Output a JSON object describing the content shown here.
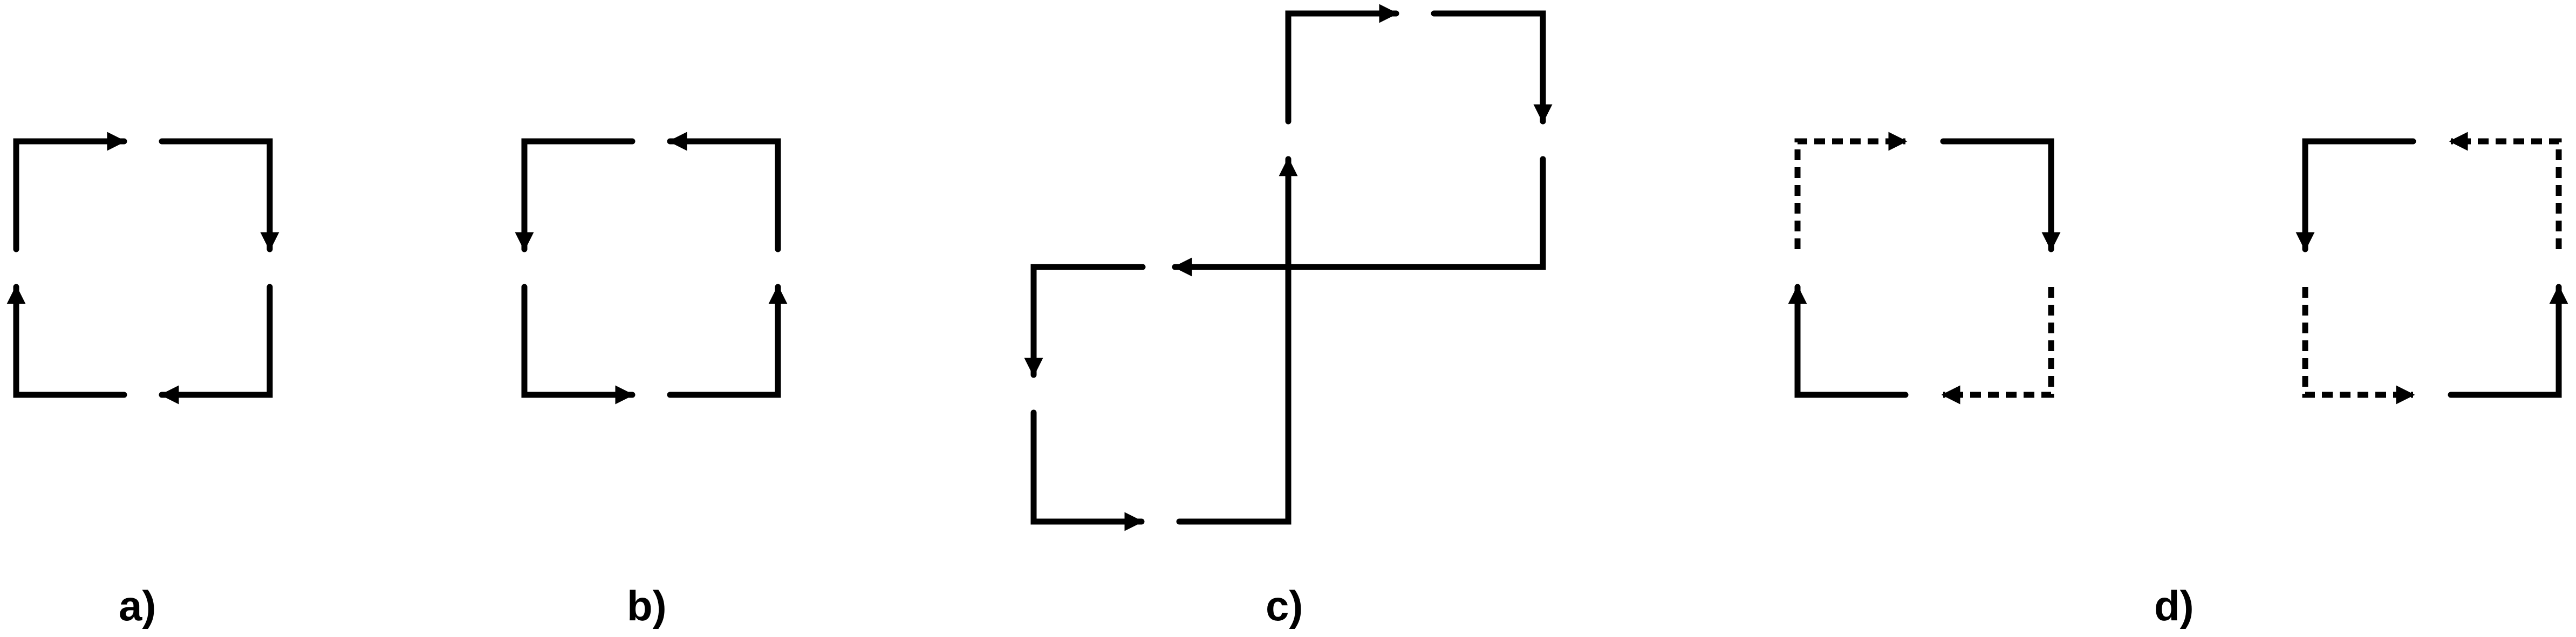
{
  "figure": {
    "panels": [
      {
        "id": "a",
        "label": "a)",
        "description_style": "clockwise loop, all solid"
      },
      {
        "id": "b",
        "label": "b)",
        "description_style": "counter-clockwise loop, all solid"
      },
      {
        "id": "c",
        "label": "c)",
        "description_style": "figure-eight crossing loop, all solid"
      },
      {
        "id": "d1",
        "label": "d)",
        "description_style": "clockwise loop, top-left and bottom-right dashed"
      },
      {
        "id": "d2",
        "label": "",
        "description_style": "counter-clockwise loop, top-right and bottom-left dashed"
      }
    ],
    "colors": {
      "stroke": "#000000",
      "background": "#ffffff"
    }
  }
}
